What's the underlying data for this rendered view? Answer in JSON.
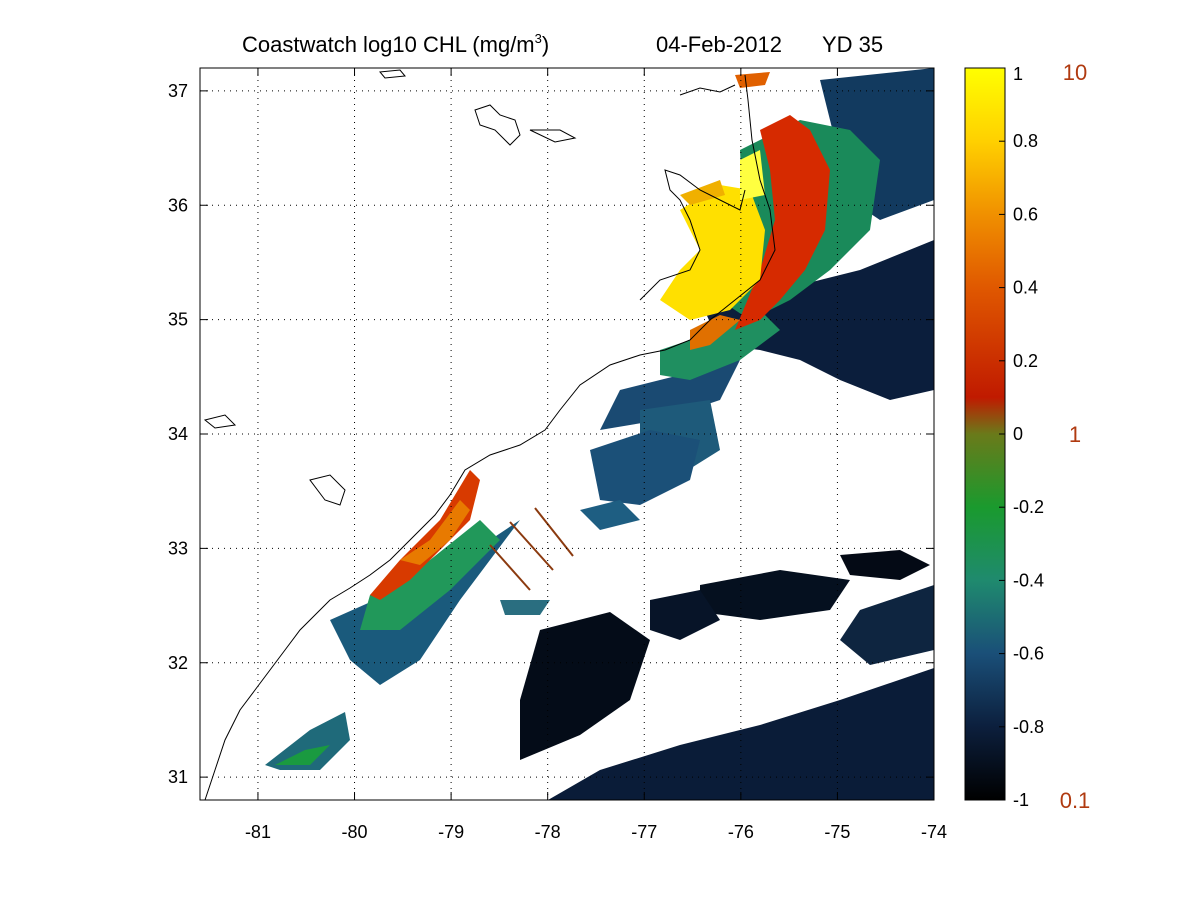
{
  "title": {
    "main": "Coastwatch  log10  CHL (mg/m",
    "superscript": "3",
    "close": ")",
    "date": "04-Feb-2012",
    "yearday": "YD 35"
  },
  "map": {
    "lon_range": [
      -81.6,
      -74
    ],
    "lat_range": [
      30.8,
      37.2
    ],
    "x_ticks": [
      {
        "value": -81,
        "label": "-81"
      },
      {
        "value": -80,
        "label": "-80"
      },
      {
        "value": -79,
        "label": "-79"
      },
      {
        "value": -78,
        "label": "-78"
      },
      {
        "value": -77,
        "label": "-77"
      },
      {
        "value": -76,
        "label": "-76"
      },
      {
        "value": -75,
        "label": "-75"
      },
      {
        "value": -74,
        "label": "-74"
      }
    ],
    "y_ticks": [
      {
        "value": 31,
        "label": "31"
      },
      {
        "value": 32,
        "label": "32"
      },
      {
        "value": 33,
        "label": "33"
      },
      {
        "value": 34,
        "label": "34"
      },
      {
        "value": 35,
        "label": "35"
      },
      {
        "value": 36,
        "label": "36"
      },
      {
        "value": 37,
        "label": "37"
      }
    ],
    "grid": "dotted",
    "coastline_color": "#000000",
    "track_color": "#8b3a0f"
  },
  "colorbar": {
    "range": [
      -1,
      1
    ],
    "ticks": [
      {
        "value": 1,
        "label": "1"
      },
      {
        "value": 0.8,
        "label": "0.8"
      },
      {
        "value": 0.6,
        "label": "0.6"
      },
      {
        "value": 0.4,
        "label": "0.4"
      },
      {
        "value": 0.2,
        "label": "0.2"
      },
      {
        "value": 0,
        "label": "0"
      },
      {
        "value": -0.2,
        "label": "-0.2"
      },
      {
        "value": -0.4,
        "label": "-0.4"
      },
      {
        "value": -0.6,
        "label": "-0.6"
      },
      {
        "value": -0.8,
        "label": "-0.8"
      },
      {
        "value": -1,
        "label": "-1"
      }
    ],
    "linear_labels": [
      {
        "value": 1,
        "label": "10"
      },
      {
        "value": 0,
        "label": "1"
      },
      {
        "value": -1,
        "label": "0.1"
      }
    ],
    "linear_label_color": "#b03a10",
    "stops": [
      {
        "value": -1,
        "color": "#000000"
      },
      {
        "value": -0.8,
        "color": "#0c1f3d"
      },
      {
        "value": -0.6,
        "color": "#1a4f78"
      },
      {
        "value": -0.4,
        "color": "#1f8a6e"
      },
      {
        "value": -0.2,
        "color": "#1a9a2e"
      },
      {
        "value": 0,
        "color": "#6a7a1a"
      },
      {
        "value": 0.1,
        "color": "#c01a00"
      },
      {
        "value": 0.4,
        "color": "#e05800"
      },
      {
        "value": 0.6,
        "color": "#f09000"
      },
      {
        "value": 0.8,
        "color": "#ffd000"
      },
      {
        "value": 1,
        "color": "#ffff00"
      }
    ]
  }
}
